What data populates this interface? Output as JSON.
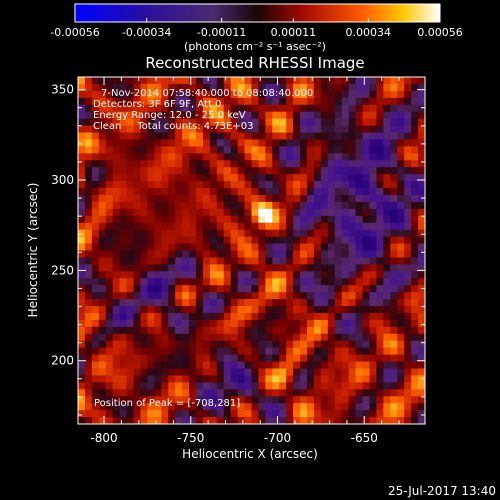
{
  "chart_data": {
    "type": "heatmap",
    "title": "Reconstructed RHESSI Image",
    "xlabel": "Heliocentric X (arcsec)",
    "ylabel": "Heliocentric Y (arcsec)",
    "xlim": [
      -815,
      -615
    ],
    "ylim": [
      165,
      357
    ],
    "x_ticks": [
      -800,
      -750,
      -700,
      -650
    ],
    "y_ticks": [
      200,
      250,
      300,
      350
    ],
    "colorbar": {
      "ticks": [
        -0.00056,
        -0.00034,
        -0.00011,
        0.00011,
        0.00034,
        0.00056
      ],
      "tick_labels": [
        "-0.00056",
        "-0.00034",
        "-0.00011",
        "0.00011",
        "0.00034",
        "0.00056"
      ],
      "range": [
        -0.00056,
        0.00056
      ],
      "units_label": "(photons cm⁻² s⁻¹ asec⁻²)",
      "colors": [
        "#0000ff",
        "#3010a0",
        "#5a2a8a",
        "#2a0a0a",
        "#c01000",
        "#ff6000",
        "#ffd000",
        "#ffffff"
      ]
    },
    "peak": {
      "x": -708,
      "y": 281
    },
    "info_lines": [
      "7-Nov-2014 07:58:40.000 to 08:08:40.000",
      "Detectors: 3F 6F 9F, Att 0",
      "Energy Range: 12.0 - 25.0 keV",
      "Clean     Total counts: 4.73E+03"
    ],
    "peak_label": "Position of Peak = [-708,281]",
    "timestamp": "25-Jul-2017 13:40"
  }
}
